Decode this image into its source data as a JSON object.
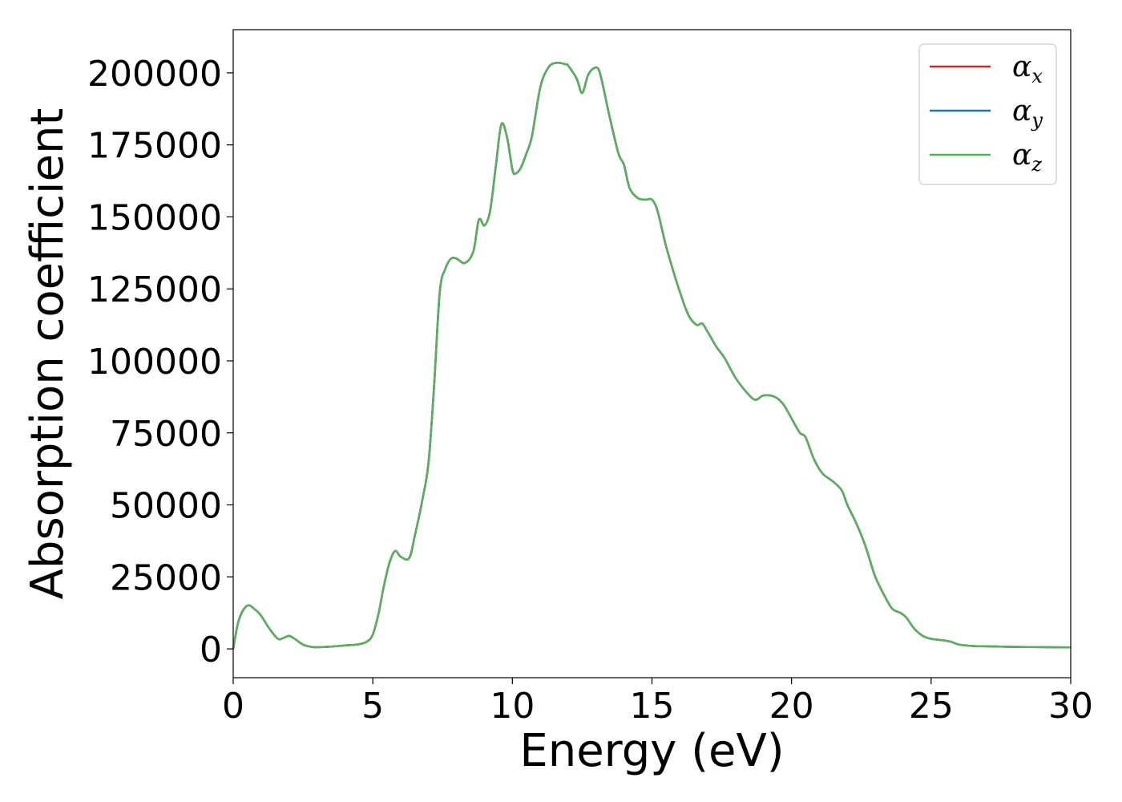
{
  "chart_data": {
    "type": "line",
    "title": "",
    "xlabel": "Energy (eV)",
    "ylabel": "Absorption coefficient",
    "xlim": [
      0,
      30
    ],
    "ylim": [
      -10000,
      215000
    ],
    "xticks": [
      0,
      5,
      10,
      15,
      20,
      25,
      30
    ],
    "xtick_labels": [
      "0",
      "5",
      "10",
      "15",
      "20",
      "25",
      "30"
    ],
    "yticks": [
      0,
      25000,
      50000,
      75000,
      100000,
      125000,
      150000,
      175000,
      200000
    ],
    "ytick_labels": [
      "0",
      "25000",
      "50000",
      "75000",
      "100000",
      "125000",
      "150000",
      "175000",
      "200000"
    ],
    "grid": false,
    "legend_position": "top-right",
    "x": [
      0,
      0.2,
      0.5,
      0.8,
      1.0,
      1.3,
      1.6,
      1.8,
      2.0,
      2.2,
      2.5,
      2.8,
      3.0,
      3.5,
      4.0,
      4.5,
      4.8,
      5.0,
      5.2,
      5.4,
      5.6,
      5.8,
      6.0,
      6.3,
      6.5,
      6.8,
      7.0,
      7.2,
      7.4,
      7.6,
      7.8,
      8.0,
      8.3,
      8.6,
      8.8,
      9.0,
      9.2,
      9.4,
      9.6,
      9.8,
      10.0,
      10.1,
      10.3,
      10.5,
      10.7,
      11.0,
      11.3,
      11.6,
      11.9,
      12.0,
      12.3,
      12.5,
      12.7,
      12.9,
      13.1,
      13.3,
      13.5,
      13.8,
      14.0,
      14.2,
      14.5,
      14.8,
      15.0,
      15.2,
      15.5,
      15.8,
      16.0,
      16.3,
      16.6,
      16.8,
      17.0,
      17.3,
      17.6,
      18.0,
      18.4,
      18.7,
      19.0,
      19.4,
      19.7,
      20.0,
      20.3,
      20.5,
      20.8,
      21.1,
      21.5,
      21.8,
      22.0,
      22.3,
      22.6,
      22.8,
      23.0,
      23.3,
      23.6,
      23.9,
      24.1,
      24.4,
      24.7,
      25.0,
      25.4,
      25.7,
      26.0,
      26.5,
      27.0,
      28.0,
      29.0,
      30.0
    ],
    "series": [
      {
        "name": "x",
        "color": "#d62728",
        "values": [
          0,
          10000,
          15000,
          13500,
          11500,
          7000,
          3500,
          3800,
          4500,
          3500,
          1500,
          700,
          600,
          800,
          1200,
          1600,
          2600,
          5000,
          12000,
          22000,
          30000,
          34000,
          32000,
          31500,
          39000,
          53000,
          65000,
          92000,
          124000,
          132000,
          135500,
          135500,
          134000,
          138000,
          149000,
          147000,
          152000,
          167000,
          182000,
          178000,
          166500,
          165000,
          167000,
          172000,
          178000,
          195000,
          202000,
          203500,
          203000,
          202500,
          198000,
          193000,
          199000,
          201500,
          201000,
          193000,
          184000,
          172000,
          168000,
          160000,
          156500,
          156000,
          156000,
          152000,
          140000,
          130000,
          124000,
          116000,
          112500,
          113000,
          110000,
          105000,
          101000,
          94000,
          89000,
          86500,
          88000,
          87500,
          85000,
          80000,
          75000,
          73500,
          66000,
          61000,
          58000,
          55000,
          50000,
          44000,
          37000,
          31000,
          25000,
          19000,
          14000,
          12500,
          11000,
          7000,
          4500,
          3500,
          3000,
          2500,
          1500,
          1000,
          900,
          700,
          600,
          500
        ]
      },
      {
        "name": "y",
        "color": "#1f77b4",
        "values": [
          0,
          10000,
          15000,
          13500,
          11500,
          7000,
          3500,
          3800,
          4500,
          3500,
          1500,
          700,
          600,
          800,
          1200,
          1600,
          2600,
          5000,
          12000,
          22000,
          30000,
          34000,
          32000,
          31500,
          39000,
          53000,
          65000,
          92000,
          124000,
          132000,
          135500,
          135500,
          134000,
          138000,
          149000,
          147000,
          152000,
          167000,
          182000,
          178000,
          166500,
          165000,
          167000,
          172000,
          178000,
          195000,
          202000,
          203500,
          203000,
          202500,
          198000,
          193000,
          199000,
          201500,
          201000,
          193000,
          184000,
          172000,
          168000,
          160000,
          156500,
          156000,
          156000,
          152000,
          140000,
          130000,
          124000,
          116000,
          112500,
          113000,
          110000,
          105000,
          101000,
          94000,
          89000,
          86500,
          88000,
          87500,
          85000,
          80000,
          75000,
          73500,
          66000,
          61000,
          58000,
          55000,
          50000,
          44000,
          37000,
          31000,
          25000,
          19000,
          14000,
          12500,
          11000,
          7000,
          4500,
          3500,
          3000,
          2500,
          1500,
          1000,
          900,
          700,
          600,
          500
        ]
      },
      {
        "name": "z",
        "color": "#5aaf5a",
        "values": [
          0,
          10000,
          15000,
          13500,
          11500,
          7000,
          3500,
          3800,
          4500,
          3500,
          1500,
          700,
          600,
          800,
          1200,
          1600,
          2600,
          5000,
          12000,
          22000,
          30000,
          34000,
          32000,
          31500,
          39000,
          53000,
          65000,
          92000,
          124000,
          132000,
          135500,
          135500,
          134000,
          138000,
          149000,
          147000,
          152000,
          167000,
          182000,
          178000,
          166500,
          165000,
          167000,
          172000,
          178000,
          195000,
          202000,
          203500,
          203000,
          202500,
          198000,
          193000,
          199000,
          201500,
          201000,
          193000,
          184000,
          172000,
          168000,
          160000,
          156500,
          156000,
          156000,
          152000,
          140000,
          130000,
          124000,
          116000,
          112500,
          113000,
          110000,
          105000,
          101000,
          94000,
          89000,
          86500,
          88000,
          87500,
          85000,
          80000,
          75000,
          73500,
          66000,
          61000,
          58000,
          55000,
          50000,
          44000,
          37000,
          31000,
          25000,
          19000,
          14000,
          12500,
          11000,
          7000,
          4500,
          3500,
          3000,
          2500,
          1500,
          1000,
          900,
          700,
          600,
          500
        ]
      }
    ],
    "legend_symbol": "α"
  }
}
